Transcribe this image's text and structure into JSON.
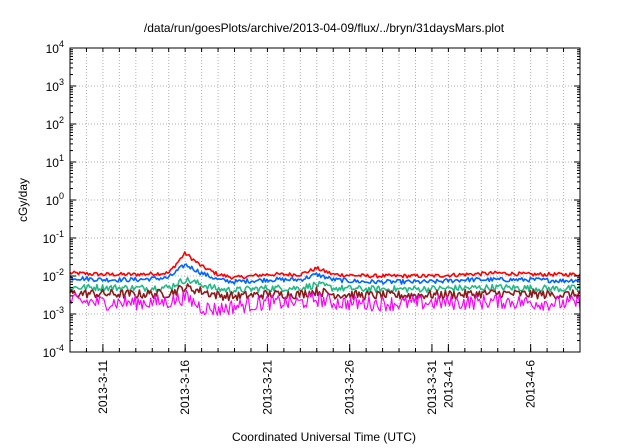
{
  "chart_data": {
    "type": "line",
    "title": "/data/run/goesPlots/archive/2013-04-09/flux/../bryn/31daysMars.plot",
    "xlabel": "Coordinated Universal Time (UTC)",
    "ylabel": "cGy/day",
    "yscale": "log",
    "ylim": [
      0.0001,
      10000
    ],
    "y_ticks": [
      {
        "base": "10",
        "exp": "-4"
      },
      {
        "base": "10",
        "exp": "-3"
      },
      {
        "base": "10",
        "exp": "-2"
      },
      {
        "base": "10",
        "exp": "-1"
      },
      {
        "base": "10",
        "exp": "0"
      },
      {
        "base": "10",
        "exp": "1"
      },
      {
        "base": "10",
        "exp": "2"
      },
      {
        "base": "10",
        "exp": "3"
      },
      {
        "base": "10",
        "exp": "4"
      }
    ],
    "xlim": [
      "2013-03-09",
      "2013-04-09"
    ],
    "x_tick_labels": [
      "2013-3-11",
      "2013-3-16",
      "2013-3-21",
      "2013-3-26",
      "2013-3-31",
      "2013-4-1",
      "2013-4-6"
    ],
    "x_tick_dates": [
      "2013-03-11",
      "2013-03-16",
      "2013-03-21",
      "2013-03-26",
      "2013-03-31",
      "2013-04-01",
      "2013-04-06"
    ],
    "grid": true,
    "legend": "none",
    "series": [
      {
        "color": "#ff0000",
        "x": [
          "2013-03-09",
          "2013-03-11",
          "2013-03-13",
          "2013-03-15",
          "2013-03-16",
          "2013-03-17",
          "2013-03-18",
          "2013-03-19",
          "2013-03-21",
          "2013-03-23",
          "2013-03-24",
          "2013-03-25",
          "2013-03-27",
          "2013-03-29",
          "2013-03-31",
          "2013-04-02",
          "2013-04-04",
          "2013-04-06",
          "2013-04-08",
          "2013-04-09"
        ],
        "values": [
          0.012,
          0.011,
          0.011,
          0.012,
          0.04,
          0.018,
          0.011,
          0.009,
          0.011,
          0.011,
          0.016,
          0.011,
          0.01,
          0.01,
          0.01,
          0.011,
          0.012,
          0.011,
          0.011,
          0.011
        ]
      },
      {
        "color": "#0066ff",
        "x": [
          "2013-03-09",
          "2013-03-11",
          "2013-03-13",
          "2013-03-15",
          "2013-03-16",
          "2013-03-17",
          "2013-03-18",
          "2013-03-19",
          "2013-03-21",
          "2013-03-23",
          "2013-03-24",
          "2013-03-25",
          "2013-03-27",
          "2013-03-29",
          "2013-03-31",
          "2013-04-02",
          "2013-04-04",
          "2013-04-06",
          "2013-04-08",
          "2013-04-09"
        ],
        "values": [
          0.009,
          0.008,
          0.008,
          0.009,
          0.02,
          0.012,
          0.008,
          0.007,
          0.008,
          0.008,
          0.011,
          0.008,
          0.007,
          0.007,
          0.007,
          0.008,
          0.008,
          0.008,
          0.0075,
          0.008
        ]
      },
      {
        "color": "#22bb88",
        "x": [
          "2013-03-09",
          "2013-03-11",
          "2013-03-13",
          "2013-03-15",
          "2013-03-16",
          "2013-03-17",
          "2013-03-18",
          "2013-03-19",
          "2013-03-21",
          "2013-03-23",
          "2013-03-24",
          "2013-03-25",
          "2013-03-27",
          "2013-03-29",
          "2013-03-31",
          "2013-04-02",
          "2013-04-04",
          "2013-04-06",
          "2013-04-08",
          "2013-04-09"
        ],
        "values": [
          0.005,
          0.005,
          0.0048,
          0.005,
          0.008,
          0.006,
          0.0045,
          0.0042,
          0.0048,
          0.0048,
          0.006,
          0.0048,
          0.0045,
          0.0045,
          0.0046,
          0.0048,
          0.005,
          0.0048,
          0.0046,
          0.0048
        ]
      },
      {
        "color": "#8b1a1a",
        "x": [
          "2013-03-09",
          "2013-03-11",
          "2013-03-13",
          "2013-03-15",
          "2013-03-16",
          "2013-03-17",
          "2013-03-18",
          "2013-03-19",
          "2013-03-21",
          "2013-03-23",
          "2013-03-24",
          "2013-03-25",
          "2013-03-27",
          "2013-03-29",
          "2013-03-31",
          "2013-04-02",
          "2013-04-04",
          "2013-04-06",
          "2013-04-08",
          "2013-04-09"
        ],
        "values": [
          0.0035,
          0.0034,
          0.0033,
          0.0035,
          0.005,
          0.004,
          0.0031,
          0.0029,
          0.0033,
          0.0033,
          0.004,
          0.0033,
          0.0031,
          0.0031,
          0.0032,
          0.0033,
          0.0035,
          0.0033,
          0.0032,
          0.0033
        ]
      },
      {
        "color": "#ff00ff",
        "x": [
          "2013-03-09",
          "2013-03-11",
          "2013-03-13",
          "2013-03-15",
          "2013-03-16",
          "2013-03-17",
          "2013-03-18",
          "2013-03-19",
          "2013-03-21",
          "2013-03-23",
          "2013-03-24",
          "2013-03-25",
          "2013-03-27",
          "2013-03-29",
          "2013-03-31",
          "2013-04-02",
          "2013-04-04",
          "2013-04-06",
          "2013-04-08",
          "2013-04-09"
        ],
        "values": [
          0.0022,
          0.002,
          0.002,
          0.0021,
          0.0028,
          0.0015,
          0.0013,
          0.0016,
          0.002,
          0.002,
          0.0025,
          0.002,
          0.0019,
          0.0019,
          0.002,
          0.002,
          0.0022,
          0.002,
          0.0019,
          0.002
        ]
      }
    ]
  }
}
